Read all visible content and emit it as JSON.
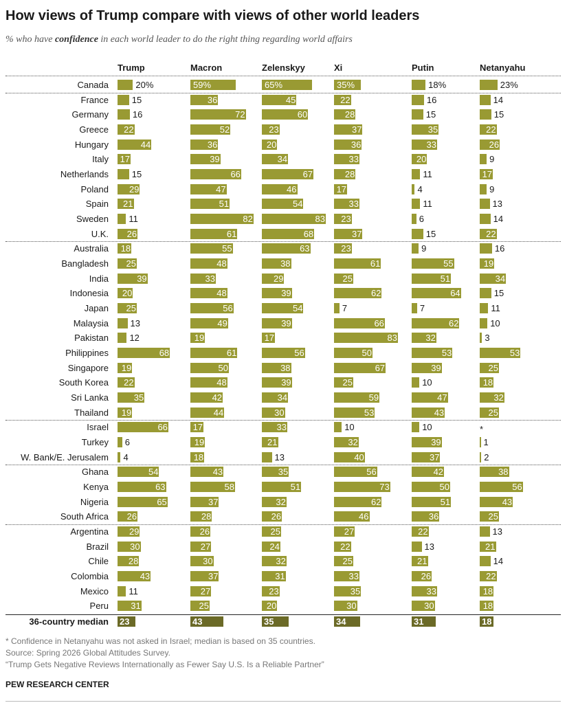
{
  "title": "How views of Trump compare with views of other world leaders",
  "subtitle": {
    "prefix": "% who have ",
    "emphasis": "confidence",
    "suffix": " in each world leader to do the right thing regarding world affairs"
  },
  "footnotes": [
    "* Confidence in Netanyahu was not asked in Israel; median is based on 35 countries.",
    "Source: Spring 2026 Global Attitudes Survey.",
    "“Trump Gets Negative Reviews Internationally as Fewer Say U.S. Is a Reliable Partner”"
  ],
  "org": "PEW RESEARCH CENTER",
  "colors": {
    "bar": "#999a33",
    "median_bar": "#6b6a27"
  },
  "chart_data": {
    "type": "bar",
    "series": [
      {
        "name": "Trump",
        "values": [
          20,
          15,
          16,
          22,
          44,
          17,
          15,
          29,
          21,
          11,
          26,
          18,
          25,
          39,
          20,
          25,
          13,
          12,
          68,
          19,
          22,
          35,
          19,
          66,
          6,
          4,
          54,
          63,
          65,
          26,
          29,
          30,
          28,
          43,
          11,
          31
        ],
        "median": 23
      },
      {
        "name": "Macron",
        "values": [
          59,
          36,
          72,
          52,
          36,
          39,
          66,
          47,
          51,
          82,
          61,
          55,
          48,
          33,
          48,
          56,
          49,
          19,
          61,
          50,
          48,
          42,
          44,
          17,
          19,
          18,
          43,
          58,
          37,
          28,
          26,
          27,
          30,
          37,
          27,
          25
        ],
        "median": 43
      },
      {
        "name": "Zelenskyy",
        "values": [
          65,
          45,
          60,
          23,
          20,
          34,
          67,
          46,
          54,
          83,
          68,
          63,
          38,
          29,
          39,
          54,
          39,
          17,
          56,
          38,
          39,
          34,
          30,
          33,
          21,
          13,
          35,
          51,
          32,
          26,
          25,
          24,
          32,
          31,
          23,
          20
        ],
        "median": 35
      },
      {
        "name": "Xi",
        "values": [
          35,
          22,
          28,
          37,
          36,
          33,
          28,
          17,
          33,
          23,
          37,
          23,
          61,
          25,
          62,
          7,
          66,
          83,
          50,
          67,
          25,
          59,
          53,
          10,
          32,
          40,
          56,
          73,
          62,
          46,
          27,
          22,
          25,
          33,
          35,
          30
        ],
        "median": 34
      },
      {
        "name": "Putin",
        "values": [
          18,
          16,
          15,
          35,
          33,
          20,
          11,
          4,
          11,
          6,
          15,
          9,
          55,
          51,
          64,
          7,
          62,
          32,
          53,
          39,
          10,
          47,
          43,
          10,
          39,
          37,
          42,
          50,
          51,
          36,
          22,
          13,
          21,
          26,
          33,
          30
        ],
        "median": 31
      },
      {
        "name": "Netanyahu",
        "values": [
          23,
          14,
          15,
          22,
          26,
          9,
          17,
          9,
          13,
          14,
          22,
          16,
          19,
          34,
          15,
          11,
          10,
          3,
          53,
          25,
          18,
          32,
          25,
          null,
          1,
          2,
          38,
          56,
          43,
          25,
          13,
          21,
          14,
          22,
          18,
          18
        ],
        "median": 18
      }
    ],
    "categories": [
      "Canada",
      "France",
      "Germany",
      "Greece",
      "Hungary",
      "Italy",
      "Netherlands",
      "Poland",
      "Spain",
      "Sweden",
      "U.K.",
      "Australia",
      "Bangladesh",
      "India",
      "Indonesia",
      "Japan",
      "Malaysia",
      "Pakistan",
      "Philippines",
      "Singapore",
      "South Korea",
      "Sri Lanka",
      "Thailand",
      "Israel",
      "Turkey",
      "W. Bank/E. Jerusalem",
      "Ghana",
      "Kenya",
      "Nigeria",
      "South Africa",
      "Argentina",
      "Brazil",
      "Chile",
      "Colombia",
      "Mexico",
      "Peru"
    ],
    "missing_marker": "*",
    "first_row_suffix": "%",
    "median_label": "36-country median",
    "group_breaks_after": [
      0,
      10,
      22,
      25,
      29
    ]
  }
}
